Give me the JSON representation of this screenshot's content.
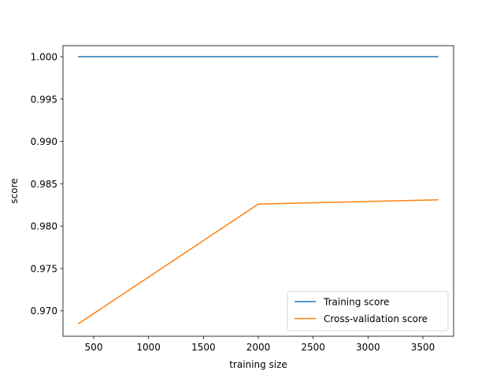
{
  "chart_data": {
    "type": "line",
    "title": "",
    "xlabel": "training size",
    "ylabel": "score",
    "xlim": [
      220,
      3780
    ],
    "ylim": [
      0.967,
      1.0013
    ],
    "xticks": [
      500,
      1000,
      1500,
      2000,
      2500,
      3000,
      3500
    ],
    "xtick_labels": [
      "500",
      "1000",
      "1500",
      "2000",
      "2500",
      "3000",
      "3500"
    ],
    "yticks": [
      0.97,
      0.975,
      0.98,
      0.985,
      0.99,
      0.995,
      1.0
    ],
    "ytick_labels": [
      "0.970",
      "0.975",
      "0.980",
      "0.985",
      "0.990",
      "0.995",
      "1.000"
    ],
    "grid": false,
    "legend_position": "lower-right",
    "series": [
      {
        "name": "Training score",
        "color": "#1f77b4",
        "x": [
          363,
          2000,
          3636
        ],
        "y": [
          1.0,
          1.0,
          1.0
        ]
      },
      {
        "name": "Cross-validation score",
        "color": "#ff7f0e",
        "x": [
          363,
          2000,
          3636
        ],
        "y": [
          0.9685,
          0.9826,
          0.9831
        ]
      }
    ]
  }
}
